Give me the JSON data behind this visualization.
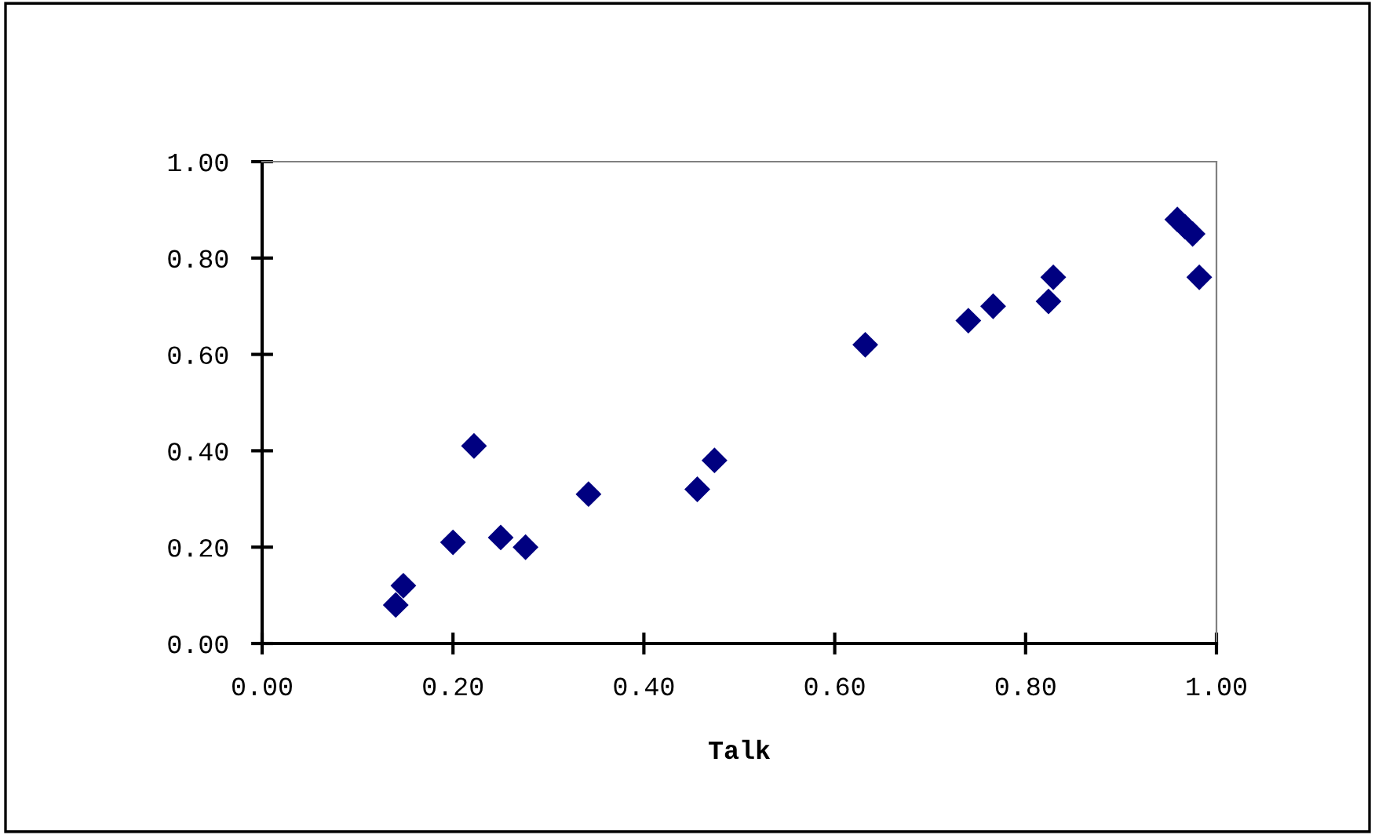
{
  "chart_data": {
    "type": "scatter",
    "xlabel": "Talk",
    "marker": "diamond",
    "grid": false,
    "legend": false,
    "xlim": [
      0,
      1
    ],
    "ylim": [
      0,
      1
    ],
    "xticks": [
      {
        "value": 0,
        "label": "0.00"
      },
      {
        "value": 0.2,
        "label": "0.20"
      },
      {
        "value": 0.4,
        "label": "0.40"
      },
      {
        "value": 0.6,
        "label": "0.60"
      },
      {
        "value": 0.8,
        "label": "0.80"
      },
      {
        "value": 1,
        "label": "1.00"
      }
    ],
    "yticks": [
      {
        "value": 0,
        "label": "0.00"
      },
      {
        "value": 0.2,
        "label": "0.20"
      },
      {
        "value": 0.4,
        "label": "0.40"
      },
      {
        "value": 0.6,
        "label": "0.60"
      },
      {
        "value": 0.8,
        "label": "0.80"
      },
      {
        "value": 1,
        "label": "1.00"
      }
    ],
    "series": [
      {
        "color": "#000080",
        "x": [
          0.14,
          0.148,
          0.2,
          0.222,
          0.25,
          0.276,
          0.342,
          0.456,
          0.474,
          0.632,
          0.74,
          0.766,
          0.824,
          0.829,
          0.959,
          0.967,
          0.975,
          0.982
        ],
        "values": [
          0.08,
          0.12,
          0.21,
          0.41,
          0.22,
          0.2,
          0.31,
          0.32,
          0.38,
          0.62,
          0.67,
          0.7,
          0.71,
          0.76,
          0.88,
          0.865,
          0.85,
          0.76
        ]
      }
    ]
  }
}
